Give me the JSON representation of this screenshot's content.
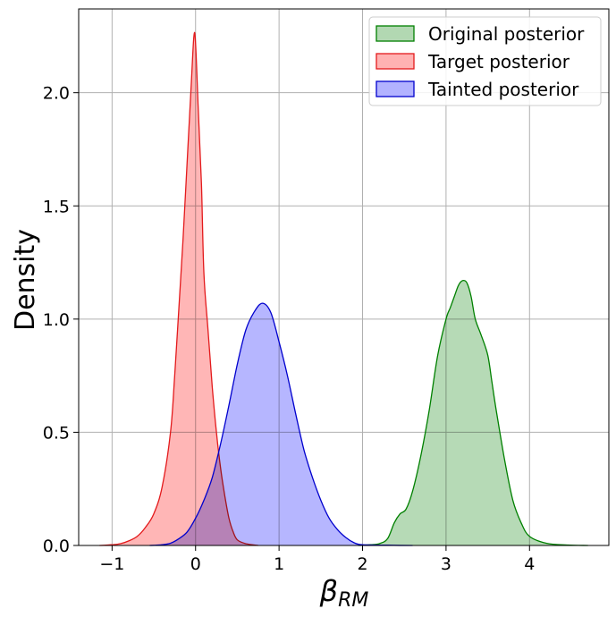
{
  "chart_data": {
    "type": "area",
    "title": "",
    "xlabel": "β_RM",
    "xlabel_main": "β",
    "xlabel_sub": "RM",
    "ylabel": "Density",
    "xlim": [
      -1.4,
      4.95
    ],
    "ylim": [
      0,
      2.37
    ],
    "xticks": [
      -1,
      0,
      1,
      2,
      3,
      4
    ],
    "xtick_labels": [
      "−1",
      "0",
      "1",
      "2",
      "3",
      "4"
    ],
    "yticks": [
      0,
      0.5,
      1.0,
      1.5,
      2.0
    ],
    "ytick_labels": [
      "0.0",
      "0.5",
      "1.0",
      "1.5",
      "2.0"
    ],
    "grid": true,
    "legend_position": "top-right",
    "series": [
      {
        "name": "Original posterior",
        "fill": "#b2d8b2",
        "stroke": "#008000",
        "points": [
          [
            1.95,
            0
          ],
          [
            2.1,
            0.003
          ],
          [
            2.2,
            0.008
          ],
          [
            2.3,
            0.03
          ],
          [
            2.38,
            0.1
          ],
          [
            2.45,
            0.14
          ],
          [
            2.52,
            0.16
          ],
          [
            2.6,
            0.24
          ],
          [
            2.7,
            0.4
          ],
          [
            2.8,
            0.6
          ],
          [
            2.9,
            0.84
          ],
          [
            3.0,
            1.0
          ],
          [
            3.05,
            1.05
          ],
          [
            3.1,
            1.1
          ],
          [
            3.15,
            1.15
          ],
          [
            3.2,
            1.17
          ],
          [
            3.25,
            1.16
          ],
          [
            3.3,
            1.1
          ],
          [
            3.35,
            1.0
          ],
          [
            3.42,
            0.93
          ],
          [
            3.5,
            0.84
          ],
          [
            3.55,
            0.72
          ],
          [
            3.6,
            0.6
          ],
          [
            3.7,
            0.38
          ],
          [
            3.8,
            0.2
          ],
          [
            3.9,
            0.1
          ],
          [
            4.0,
            0.04
          ],
          [
            4.2,
            0.01
          ],
          [
            4.45,
            0.002
          ],
          [
            4.7,
            0
          ]
        ]
      },
      {
        "name": "Target posterior",
        "fill": "#ffb2b2",
        "stroke": "#e31a1c",
        "points": [
          [
            -1.15,
            0
          ],
          [
            -1.0,
            0.003
          ],
          [
            -0.9,
            0.008
          ],
          [
            -0.8,
            0.02
          ],
          [
            -0.7,
            0.04
          ],
          [
            -0.6,
            0.08
          ],
          [
            -0.5,
            0.14
          ],
          [
            -0.4,
            0.26
          ],
          [
            -0.3,
            0.5
          ],
          [
            -0.25,
            0.75
          ],
          [
            -0.2,
            1.05
          ],
          [
            -0.15,
            1.35
          ],
          [
            -0.1,
            1.7
          ],
          [
            -0.05,
            2.05
          ],
          [
            -0.02,
            2.25
          ],
          [
            0.0,
            2.22
          ],
          [
            0.03,
            1.95
          ],
          [
            0.07,
            1.6
          ],
          [
            0.1,
            1.2
          ],
          [
            0.15,
            0.95
          ],
          [
            0.2,
            0.7
          ],
          [
            0.25,
            0.5
          ],
          [
            0.3,
            0.34
          ],
          [
            0.35,
            0.22
          ],
          [
            0.4,
            0.12
          ],
          [
            0.45,
            0.06
          ],
          [
            0.5,
            0.025
          ],
          [
            0.6,
            0.008
          ],
          [
            0.75,
            0
          ]
        ]
      },
      {
        "name": "Tainted posterior",
        "fill": "#b2b2ff",
        "stroke": "#0000cd",
        "points": [
          [
            -0.55,
            0
          ],
          [
            -0.4,
            0.003
          ],
          [
            -0.3,
            0.01
          ],
          [
            -0.2,
            0.03
          ],
          [
            -0.1,
            0.06
          ],
          [
            0.0,
            0.12
          ],
          [
            0.1,
            0.2
          ],
          [
            0.2,
            0.3
          ],
          [
            0.3,
            0.45
          ],
          [
            0.4,
            0.62
          ],
          [
            0.5,
            0.8
          ],
          [
            0.6,
            0.95
          ],
          [
            0.7,
            1.03
          ],
          [
            0.8,
            1.07
          ],
          [
            0.9,
            1.03
          ],
          [
            1.0,
            0.9
          ],
          [
            1.1,
            0.75
          ],
          [
            1.2,
            0.58
          ],
          [
            1.3,
            0.42
          ],
          [
            1.4,
            0.3
          ],
          [
            1.5,
            0.2
          ],
          [
            1.6,
            0.12
          ],
          [
            1.7,
            0.07
          ],
          [
            1.8,
            0.035
          ],
          [
            1.9,
            0.012
          ],
          [
            2.0,
            0.003
          ],
          [
            2.3,
            0.001
          ],
          [
            2.6,
            0
          ]
        ]
      }
    ]
  }
}
